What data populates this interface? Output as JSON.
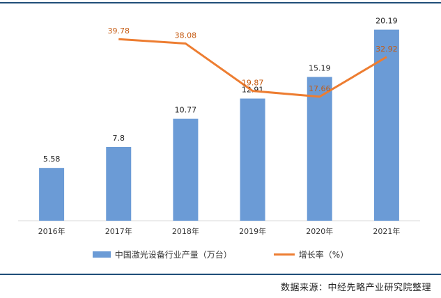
{
  "chart_data": {
    "type": "bar",
    "categories": [
      "2016年",
      "2017年",
      "2018年",
      "2019年",
      "2020年",
      "2021年"
    ],
    "series": [
      {
        "name": "中国激光设备行业产量（万台）",
        "type": "bar",
        "axis": "left",
        "values": [
          5.58,
          7.8,
          10.77,
          12.91,
          15.19,
          20.19
        ],
        "labels": [
          "5.58",
          "7.8",
          "10.77",
          "12.91",
          "15.19",
          "20.19"
        ],
        "color": "#6b9bd6"
      },
      {
        "name": "增长率（%）",
        "type": "line",
        "axis": "right",
        "values": [
          null,
          39.78,
          38.08,
          19.87,
          17.66,
          32.92
        ],
        "labels": [
          "",
          "39.78",
          "38.08",
          "19.87",
          "17.66",
          "32.92"
        ],
        "color": "#ed7d31"
      }
    ],
    "ylim_left": [
      0,
      22
    ],
    "ylim_right": [
      -30,
      50
    ],
    "grid": false,
    "legend_position": "bottom"
  },
  "source": "数据来源：中经先略产业研究院整理"
}
